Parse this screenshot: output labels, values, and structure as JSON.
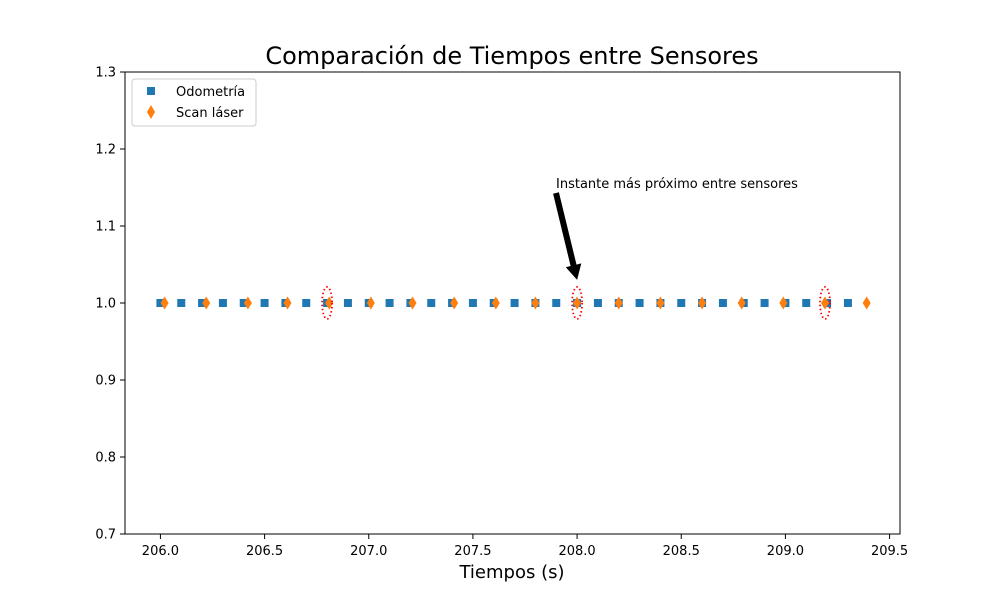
{
  "chart_data": {
    "type": "scatter",
    "title": "Comparación de Tiempos entre Sensores",
    "xlabel": "Tiempos (s)",
    "ylabel": "",
    "xlim": [
      205.83,
      209.55
    ],
    "ylim": [
      0.7,
      1.3
    ],
    "xticks": [
      "206.0",
      "206.5",
      "207.0",
      "207.5",
      "208.0",
      "208.5",
      "209.0",
      "209.5"
    ],
    "yticks": [
      "0.7",
      "0.8",
      "0.9",
      "1.0",
      "1.1",
      "1.2",
      "1.3"
    ],
    "grid": false,
    "legend_position": "top-left",
    "series": [
      {
        "name": "Odometría",
        "marker": "square",
        "color": "#1f77b4",
        "x": [
          206.0,
          206.1,
          206.2,
          206.3,
          206.4,
          206.5,
          206.6,
          206.7,
          206.8,
          206.9,
          207.0,
          207.1,
          207.2,
          207.3,
          207.4,
          207.5,
          207.6,
          207.7,
          207.8,
          207.9,
          208.0,
          208.1,
          208.2,
          208.3,
          208.4,
          208.5,
          208.6,
          208.7,
          208.8,
          208.9,
          209.0,
          209.1,
          209.2,
          209.3
        ],
        "y_constant": 1.0
      },
      {
        "name": "Scan láser",
        "marker": "diamond",
        "color": "#ff7f0e",
        "x": [
          206.02,
          206.22,
          206.42,
          206.61,
          206.81,
          207.01,
          207.21,
          207.41,
          207.61,
          207.8,
          208.0,
          208.2,
          208.4,
          208.6,
          208.79,
          208.99,
          209.19,
          209.39
        ],
        "y_constant": 1.0
      }
    ],
    "highlights": {
      "color": "#ff0000",
      "style": "dotted-ellipse",
      "x": [
        206.8,
        208.0,
        209.19
      ],
      "y": 1.0
    },
    "annotation": {
      "text": "Instante más próximo entre sensores",
      "xy": [
        208.0,
        1.03
      ],
      "xytext": [
        207.9,
        1.15
      ]
    }
  }
}
